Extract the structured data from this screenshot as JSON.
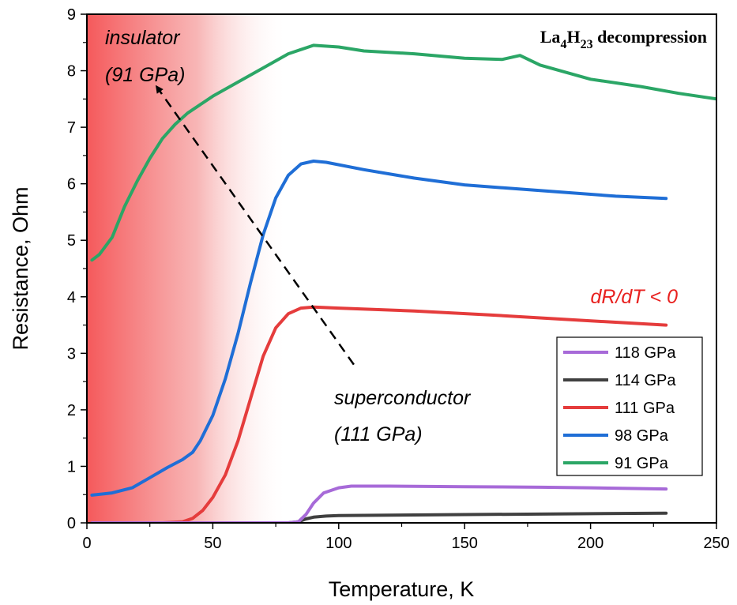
{
  "chart_data": {
    "type": "line",
    "title": {
      "prefix": "La",
      "sub1": "4",
      "mid": "H",
      "sub2": "23",
      "suffix": " decompression"
    },
    "xlabel": "Temperature, K",
    "ylabel": "Resistance, Ohm",
    "xlim": [
      0,
      250
    ],
    "ylim": [
      0,
      9
    ],
    "x_ticks": [
      0,
      50,
      100,
      150,
      200,
      250
    ],
    "y_ticks": [
      0,
      1,
      2,
      3,
      4,
      5,
      6,
      7,
      8,
      9
    ],
    "legend_position": "bottom-right",
    "grid": false,
    "insulating_region": {
      "x_end": 80,
      "color": "#f5595b"
    },
    "annotations": {
      "insulator_line1": "insulator",
      "insulator_line2": "(91 GPa)",
      "superconductor_line1": "superconductor",
      "superconductor_line2": "(111 GPa)",
      "drdt": "dR/dT < 0",
      "drdt_color": "#e8211f",
      "arrow_from": [
        106,
        2.8
      ],
      "arrow_to": [
        28,
        7.7
      ]
    },
    "series": [
      {
        "name": "118 GPa",
        "color": "#a76ad8",
        "x": [
          2,
          80,
          84,
          87,
          90,
          94,
          100,
          105,
          120,
          150,
          180,
          200,
          230
        ],
        "y": [
          0,
          0,
          0.02,
          0.15,
          0.35,
          0.53,
          0.62,
          0.65,
          0.65,
          0.64,
          0.63,
          0.62,
          0.6
        ]
      },
      {
        "name": "114 GPa",
        "color": "#404040",
        "x": [
          2,
          80,
          84,
          87,
          90,
          95,
          100,
          130,
          160,
          190,
          230
        ],
        "y": [
          0,
          0,
          0.02,
          0.07,
          0.1,
          0.12,
          0.13,
          0.14,
          0.15,
          0.16,
          0.17
        ]
      },
      {
        "name": "111 GPa",
        "color": "#e53c3c",
        "x": [
          2,
          30,
          38,
          42,
          46,
          50,
          55,
          60,
          65,
          70,
          75,
          80,
          85,
          90,
          100,
          130,
          160,
          190,
          210,
          230
        ],
        "y": [
          0,
          0,
          0.02,
          0.08,
          0.22,
          0.45,
          0.85,
          1.45,
          2.2,
          2.95,
          3.45,
          3.7,
          3.8,
          3.82,
          3.8,
          3.75,
          3.68,
          3.6,
          3.55,
          3.5
        ]
      },
      {
        "name": "98 GPa",
        "color": "#1f6ed6",
        "x": [
          2,
          10,
          18,
          25,
          32,
          38,
          42,
          45,
          50,
          55,
          60,
          65,
          70,
          75,
          80,
          85,
          90,
          95,
          110,
          130,
          150,
          180,
          210,
          230
        ],
        "y": [
          0.49,
          0.53,
          0.62,
          0.8,
          0.98,
          1.12,
          1.25,
          1.45,
          1.9,
          2.55,
          3.35,
          4.25,
          5.1,
          5.75,
          6.15,
          6.35,
          6.4,
          6.38,
          6.25,
          6.1,
          5.98,
          5.88,
          5.78,
          5.74
        ]
      },
      {
        "name": "91 GPa",
        "color": "#2ba666",
        "x": [
          2,
          5,
          10,
          15,
          20,
          25,
          30,
          35,
          40,
          50,
          60,
          70,
          80,
          90,
          100,
          110,
          130,
          150,
          165,
          172,
          180,
          200,
          220,
          235,
          250
        ],
        "y": [
          4.65,
          4.75,
          5.05,
          5.6,
          6.05,
          6.45,
          6.8,
          7.05,
          7.25,
          7.55,
          7.8,
          8.05,
          8.3,
          8.45,
          8.42,
          8.35,
          8.3,
          8.22,
          8.2,
          8.27,
          8.1,
          7.85,
          7.72,
          7.6,
          7.5
        ]
      }
    ]
  }
}
